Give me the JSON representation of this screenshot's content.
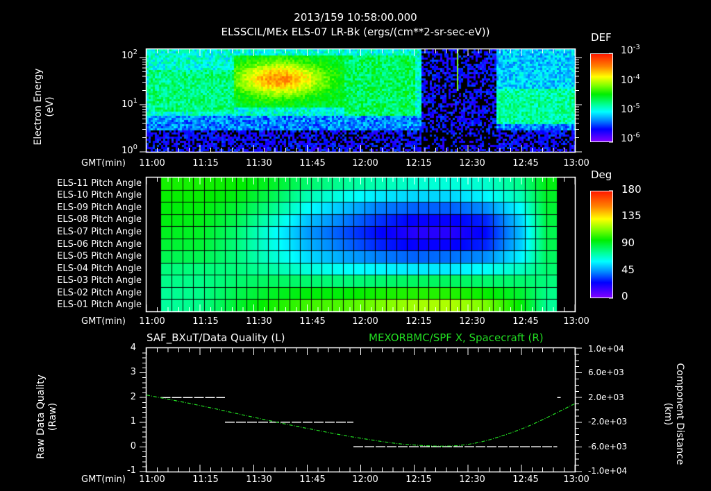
{
  "header": {
    "timestamp": "2013/159 10:58:00.000",
    "subtitle": "ELSSCIL/MEx ELS-07 LR-Bk  (ergs/(cm**2-sr-sec-eV))"
  },
  "colors": {
    "background": "#000000",
    "foreground": "#ffffff",
    "spacecraft_series": "#22dd22"
  },
  "time_axis": {
    "label": "GMT(min)",
    "ticks": [
      "11:00",
      "11:15",
      "11:30",
      "11:45",
      "12:00",
      "12:15",
      "12:30",
      "12:45",
      "13:00"
    ]
  },
  "panel1": {
    "ylabel_line1": "Electron Energy",
    "ylabel_line2": "(eV)",
    "y_ticks": [
      {
        "base": "10",
        "exp": "2"
      },
      {
        "base": "10",
        "exp": "1"
      },
      {
        "base": "10",
        "exp": "0"
      }
    ],
    "colorbar": {
      "title": "DEF",
      "labels": [
        {
          "base": "10",
          "exp": "-3"
        },
        {
          "base": "10",
          "exp": "-4"
        },
        {
          "base": "10",
          "exp": "-5"
        },
        {
          "base": "10",
          "exp": "-6"
        }
      ]
    }
  },
  "panel2": {
    "row_labels": [
      "ELS-11 Pitch Angle",
      "ELS-10 Pitch Angle",
      "ELS-09 Pitch Angle",
      "ELS-08 Pitch Angle",
      "ELS-07 Pitch Angle",
      "ELS-06 Pitch Angle",
      "ELS-05 Pitch Angle",
      "ELS-04 Pitch Angle",
      "ELS-03 Pitch Angle",
      "ELS-02 Pitch Angle",
      "ELS-01 Pitch Angle"
    ],
    "colorbar": {
      "title": "Deg",
      "labels": [
        "180",
        "135",
        "90",
        "45",
        "0"
      ]
    }
  },
  "panel3": {
    "left_title": "SAF_BXuT/Data Quality (L)",
    "right_title": "MEXORBMC/SPF X, Spacecraft (R)",
    "ylabel_left_line1": "Raw Data Quality",
    "ylabel_left_line2": "(Raw)",
    "ylabel_right_line1": "Component Distance",
    "ylabel_right_line2": "(km)",
    "left_ticks": [
      "4",
      "3",
      "2",
      "1",
      "0",
      "-1"
    ],
    "right_ticks": [
      "1.0e+04",
      "6.0e+03",
      "2.0e+03",
      "-2.0e+03",
      "-6.0e+03",
      "-1.0e+04"
    ]
  },
  "chart_data": [
    {
      "type": "heatmap",
      "title": "ELSSCIL/MEx ELS-07 LR-Bk (ergs/(cm**2-sr-sec-eV))",
      "xlabel": "GMT(min)",
      "ylabel": "Electron Energy (eV)",
      "x_range": [
        "11:00",
        "13:00"
      ],
      "y_range": [
        1,
        150
      ],
      "y_scale": "log",
      "colorbar": {
        "label": "DEF",
        "range": [
          1e-06,
          0.001
        ],
        "scale": "log"
      },
      "features": [
        {
          "time": "11:25-11:55",
          "energy_eV": "10-100",
          "level": "~1e-4 (green/yellow peak near 11:37)"
        },
        {
          "time": "11:55-12:15",
          "energy_eV": "5-100",
          "level": "~3e-5 (cyan/green)"
        },
        {
          "time": "12:18-12:37",
          "energy_eV": "all",
          "level": "<1e-6 to 2e-6 (sparse, mostly empty)"
        },
        {
          "time": "12:37-13:00",
          "energy_eV": "4-30",
          "level": "~1e-5 (cyan band)"
        },
        {
          "time": "11:00-13:00",
          "energy_eV": "1-4",
          "level": "~1e-6 (purple speckle)"
        }
      ]
    },
    {
      "type": "heatmap",
      "title": "ELS Pitch Angle",
      "xlabel": "GMT(min)",
      "rows": [
        "ELS-11",
        "ELS-10",
        "ELS-09",
        "ELS-08",
        "ELS-07",
        "ELS-06",
        "ELS-05",
        "ELS-04",
        "ELS-03",
        "ELS-02",
        "ELS-01"
      ],
      "x_range": [
        "11:04",
        "12:55"
      ],
      "colorbar": {
        "label": "Deg",
        "range": [
          0,
          180
        ]
      },
      "time_columns": [
        "11:05",
        "11:15",
        "11:25",
        "11:35",
        "11:45",
        "11:55",
        "12:05",
        "12:15",
        "12:25",
        "12:35",
        "12:45",
        "12:52"
      ],
      "values_deg": [
        [
          100,
          100,
          98,
          92,
          82,
          76,
          72,
          68,
          66,
          68,
          78,
          95
        ],
        [
          98,
          98,
          95,
          86,
          72,
          64,
          58,
          55,
          55,
          60,
          72,
          92
        ],
        [
          96,
          96,
          90,
          78,
          62,
          52,
          42,
          38,
          38,
          44,
          62,
          90
        ],
        [
          95,
          94,
          86,
          70,
          52,
          42,
          32,
          24,
          24,
          30,
          55,
          88
        ],
        [
          93,
          92,
          82,
          64,
          46,
          36,
          26,
          18,
          18,
          26,
          52,
          86
        ],
        [
          90,
          90,
          80,
          65,
          50,
          40,
          30,
          24,
          24,
          30,
          54,
          86
        ],
        [
          86,
          86,
          80,
          68,
          56,
          48,
          42,
          38,
          40,
          44,
          60,
          84
        ],
        [
          80,
          80,
          80,
          74,
          66,
          62,
          60,
          58,
          58,
          62,
          70,
          82
        ],
        [
          78,
          78,
          82,
          84,
          82,
          80,
          82,
          84,
          84,
          82,
          82,
          80
        ],
        [
          76,
          78,
          86,
          92,
          96,
          96,
          100,
          102,
          102,
          98,
          90,
          78
        ],
        [
          75,
          78,
          90,
          100,
          106,
          108,
          114,
          120,
          122,
          114,
          96,
          76
        ]
      ]
    },
    {
      "type": "line",
      "title": "SAF_BXuT/Data Quality (L) ; MEXORBMC/SPF X, Spacecraft (R)",
      "xlabel": "GMT(min)",
      "ylabel_left": "Raw Data Quality (Raw)",
      "ylabel_right": "Component Distance (km)",
      "ylim_left": [
        -1,
        4
      ],
      "ylim_right": [
        -10000,
        10000
      ],
      "series": [
        {
          "name": "SAF_BXuT/Data Quality",
          "axis": "left",
          "color": "#ffffff",
          "style": "dashed-steps",
          "points": [
            {
              "x": "11:04",
              "y": 2
            },
            {
              "x": "11:22",
              "y": 2
            },
            {
              "x": "11:22",
              "y": 1
            },
            {
              "x": "11:58",
              "y": 1
            },
            {
              "x": "11:58",
              "y": 0
            },
            {
              "x": "12:55",
              "y": 0
            },
            {
              "x": "12:55",
              "y": 2
            },
            {
              "x": "12:56",
              "y": 2
            }
          ]
        },
        {
          "name": "MEXORBMC/SPF X, Spacecraft",
          "axis": "right",
          "color": "#22dd22",
          "style": "dashed",
          "x": [
            "11:00",
            "11:15",
            "11:30",
            "11:45",
            "12:00",
            "12:15",
            "12:30",
            "12:45",
            "13:00"
          ],
          "values_km": [
            2400,
            700,
            -1200,
            -3000,
            -4600,
            -5700,
            -5600,
            -3100,
            1000
          ]
        }
      ]
    }
  ]
}
